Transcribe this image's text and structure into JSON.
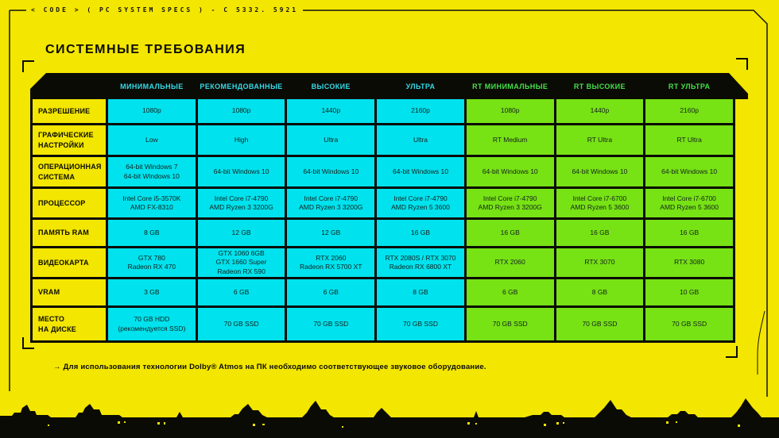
{
  "page": {
    "code_line": "< CODE > ( PC SYSTEM SPECS ) - C 5332. 5921",
    "title": "СИСТЕМНЫЕ ТРЕБОВАНИЯ",
    "footnote": "→ Для использования технологии Dolby® Atmos на ПК необходимо соответствующее звуковое оборудование."
  },
  "colors": {
    "background_yellow": "#f3e600",
    "panel_black": "#0b0b05",
    "cell_cyan": "#00e2ed",
    "cell_green": "#77e214",
    "header_cyan_text": "#35d9e6",
    "header_green_text": "#44e04a"
  },
  "table": {
    "columns": [
      {
        "label": "МИНИМАЛЬНЫЕ",
        "theme": "cyan"
      },
      {
        "label": "РЕКОМЕНДОВАННЫЕ",
        "theme": "cyan"
      },
      {
        "label": "ВЫСОКИЕ",
        "theme": "cyan"
      },
      {
        "label": "УЛЬТРА",
        "theme": "cyan"
      },
      {
        "label": "RT МИНИМАЛЬНЫЕ",
        "theme": "green"
      },
      {
        "label": "RT ВЫСОКИЕ",
        "theme": "green"
      },
      {
        "label": "RT УЛЬТРА",
        "theme": "green"
      }
    ],
    "rows": [
      {
        "label": [
          "РАЗРЕШЕНИЕ"
        ],
        "cells": [
          [
            "1080p"
          ],
          [
            "1080p"
          ],
          [
            "1440p"
          ],
          [
            "2160p"
          ],
          [
            "1080p"
          ],
          [
            "1440p"
          ],
          [
            "2160p"
          ]
        ]
      },
      {
        "label": [
          "ГРАФИЧЕСКИЕ",
          "НАСТРОЙКИ"
        ],
        "cells": [
          [
            "Low"
          ],
          [
            "High"
          ],
          [
            "Ultra"
          ],
          [
            "Ultra"
          ],
          [
            "RT Medium"
          ],
          [
            "RT Ultra"
          ],
          [
            "RT Ultra"
          ]
        ]
      },
      {
        "label": [
          "ОПЕРАЦИОННАЯ",
          "СИСТЕМА"
        ],
        "cells": [
          [
            "64-bit Windows 7",
            "64-bit Windows 10"
          ],
          [
            "64-bit Windows 10"
          ],
          [
            "64-bit Windows 10"
          ],
          [
            "64-bit Windows 10"
          ],
          [
            "64-bit Windows 10"
          ],
          [
            "64-bit Windows 10"
          ],
          [
            "64-bit Windows 10"
          ]
        ]
      },
      {
        "label": [
          "ПРОЦЕССОР"
        ],
        "cells": [
          [
            "Intel Core i5-3570K",
            "AMD FX-8310"
          ],
          [
            "Intel Core i7-4790",
            "AMD Ryzen 3 3200G"
          ],
          [
            "Intel Core i7-4790",
            "AMD Ryzen 3 3200G"
          ],
          [
            "Intel Core i7-4790",
            "AMD Ryzen 5 3600"
          ],
          [
            "Intel Core i7-4790",
            "AMD Ryzen 3 3200G"
          ],
          [
            "Intel Core i7-6700",
            "AMD Ryzen 5 3600"
          ],
          [
            "Intel Core i7-6700",
            "AMD Ryzen 5 3600"
          ]
        ]
      },
      {
        "label": [
          "ПАМЯТЬ RAM"
        ],
        "cells": [
          [
            "8 GB"
          ],
          [
            "12 GB"
          ],
          [
            "12 GB"
          ],
          [
            "16 GB"
          ],
          [
            "16 GB"
          ],
          [
            "16 GB"
          ],
          [
            "16 GB"
          ]
        ]
      },
      {
        "label": [
          "ВИДЕОКАРТА"
        ],
        "cells": [
          [
            "GTX 780",
            "Radeon RX 470"
          ],
          [
            "GTX 1060 6GB",
            "GTX 1660 Super",
            "Radeon RX 590"
          ],
          [
            "RTX 2060",
            "Radeon RX 5700 XT"
          ],
          [
            "RTX 2080S / RTX 3070",
            "Radeon RX 6800 XT"
          ],
          [
            "RTX 2060"
          ],
          [
            "RTX 3070"
          ],
          [
            "RTX 3080"
          ]
        ]
      },
      {
        "label": [
          "VRAM"
        ],
        "cells": [
          [
            "3 GB"
          ],
          [
            "6 GB"
          ],
          [
            "6 GB"
          ],
          [
            "8 GB"
          ],
          [
            "6 GB"
          ],
          [
            "8 GB"
          ],
          [
            "10 GB"
          ]
        ]
      },
      {
        "label": [
          "МЕСТО",
          "НА ДИСКЕ"
        ],
        "cells": [
          [
            "70 GB HDD",
            "(рекомендуется SSD)"
          ],
          [
            "70 GB SSD"
          ],
          [
            "70 GB SSD"
          ],
          [
            "70 GB SSD"
          ],
          [
            "70 GB SSD"
          ],
          [
            "70 GB SSD"
          ],
          [
            "70 GB SSD"
          ]
        ]
      }
    ]
  }
}
